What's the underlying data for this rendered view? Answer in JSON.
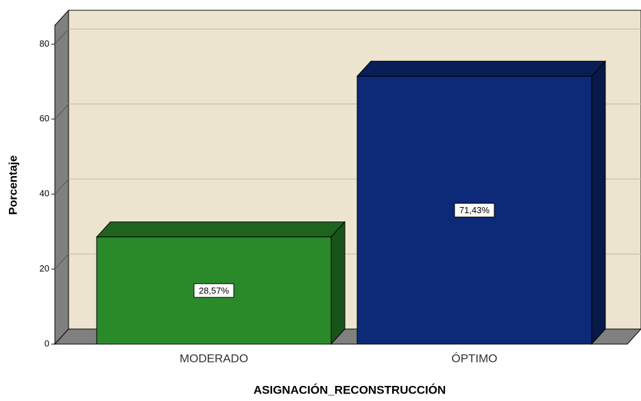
{
  "chart_data": {
    "type": "bar3d",
    "categories": [
      "MODERADO",
      "ÓPTIMO"
    ],
    "values": [
      28.57,
      71.43
    ],
    "value_labels": [
      "28,57%",
      "71,43%"
    ],
    "colors": [
      "#2a8a2a",
      "#0c2a78"
    ],
    "x_label": "ASIGNACIÓN_RECONSTRUCCIÓN",
    "y_label": "Porcentaje",
    "ylim": [
      0,
      85
    ],
    "yticks": [
      0,
      20,
      40,
      60,
      80
    ],
    "grid": true
  }
}
